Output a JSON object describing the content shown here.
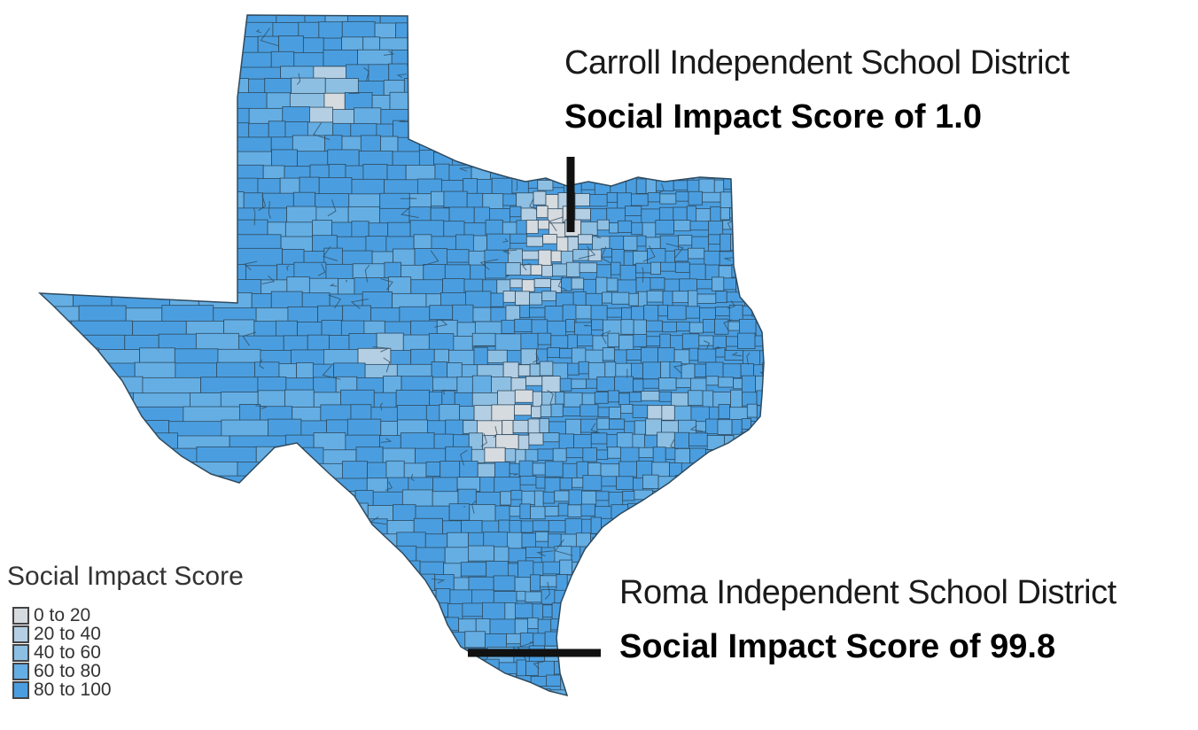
{
  "legend": {
    "title": "Social Impact Score",
    "items": [
      {
        "label": "0 to 20",
        "color": "#d6dbe0"
      },
      {
        "label": "20 to 40",
        "color": "#b4cfe3"
      },
      {
        "label": "40 to 60",
        "color": "#8dbfe3"
      },
      {
        "label": "60 to 80",
        "color": "#64aee4"
      },
      {
        "label": "80 to 100",
        "color": "#4a9ee0"
      }
    ]
  },
  "callouts": [
    {
      "district": "Carroll Independent School District",
      "score_text": "Social Impact Score of 1.0"
    },
    {
      "district": "Roma Independent School District",
      "score_text": "Social Impact Score of 99.8"
    }
  ],
  "colors": {
    "border": "#2f4a5e",
    "pointer": "#111111"
  }
}
